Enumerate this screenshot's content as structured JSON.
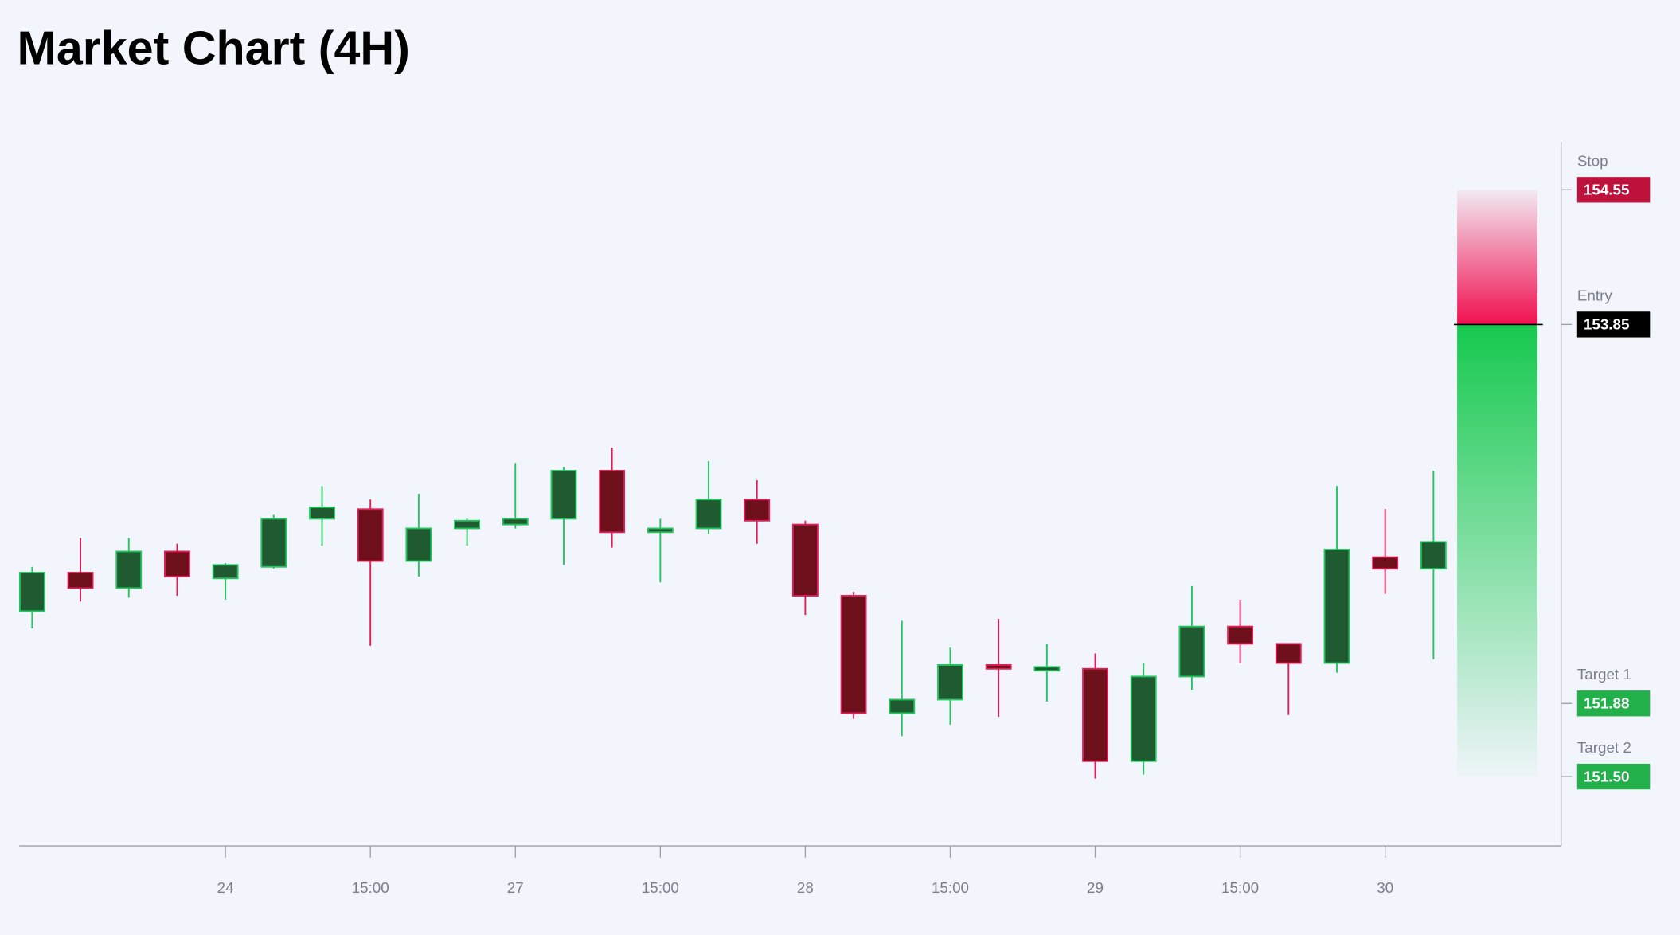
{
  "chart_data": {
    "type": "candlestick",
    "title": "Market Chart (4H)",
    "categories": [
      null,
      null,
      null,
      null,
      "24",
      null,
      null,
      "15:00",
      null,
      null,
      "27",
      null,
      null,
      "15:00",
      null,
      null,
      "28",
      null,
      null,
      "15:00",
      null,
      null,
      "29",
      null,
      null,
      "15:00",
      null,
      null,
      "30",
      null
    ],
    "open": [
      152.36,
      152.56,
      152.48,
      152.67,
      152.53,
      152.59,
      152.84,
      152.89,
      152.62,
      152.79,
      152.81,
      152.84,
      153.09,
      152.77,
      152.79,
      152.94,
      152.81,
      152.44,
      151.83,
      151.9,
      152.08,
      152.05,
      152.06,
      151.58,
      152.02,
      152.28,
      152.19,
      152.09,
      152.64,
      152.58
    ],
    "high": [
      152.59,
      152.74,
      152.74,
      152.71,
      152.61,
      152.86,
      153.01,
      152.94,
      152.97,
      152.84,
      153.13,
      153.11,
      153.21,
      152.84,
      153.14,
      153.04,
      152.83,
      152.46,
      152.31,
      152.17,
      152.32,
      152.19,
      152.14,
      152.09,
      152.49,
      152.42,
      152.19,
      153.01,
      152.89,
      153.09
    ],
    "low": [
      152.27,
      152.41,
      152.43,
      152.44,
      152.42,
      152.58,
      152.7,
      152.18,
      152.54,
      152.7,
      152.79,
      152.6,
      152.69,
      152.51,
      152.76,
      152.71,
      152.34,
      151.8,
      151.71,
      151.77,
      151.81,
      151.89,
      151.49,
      151.51,
      151.95,
      152.09,
      151.82,
      152.04,
      152.45,
      152.11
    ],
    "close": [
      152.56,
      152.48,
      152.67,
      152.54,
      152.6,
      152.84,
      152.9,
      152.62,
      152.79,
      152.83,
      152.84,
      153.09,
      152.77,
      152.79,
      152.94,
      152.83,
      152.44,
      151.83,
      151.9,
      152.08,
      152.06,
      152.07,
      151.58,
      152.02,
      152.28,
      152.19,
      152.09,
      152.68,
      152.58,
      152.72
    ],
    "ylim": [
      151.14,
      154.8
    ],
    "up_color": "#22c55e",
    "up_fill": "#1f5a30",
    "down_color": "#e11d55",
    "down_fill": "#6e0f1c",
    "levels": [
      {
        "name": "Stop",
        "value": 154.55,
        "label": "154.55",
        "color": "#be123c"
      },
      {
        "name": "Entry",
        "value": 153.85,
        "label": "153.85",
        "color": "#000000"
      },
      {
        "name": "Target 1",
        "value": 151.88,
        "label": "151.88",
        "color": "#22b04b"
      },
      {
        "name": "Target 2",
        "value": 151.5,
        "label": "151.50",
        "color": "#22b04b"
      }
    ]
  }
}
